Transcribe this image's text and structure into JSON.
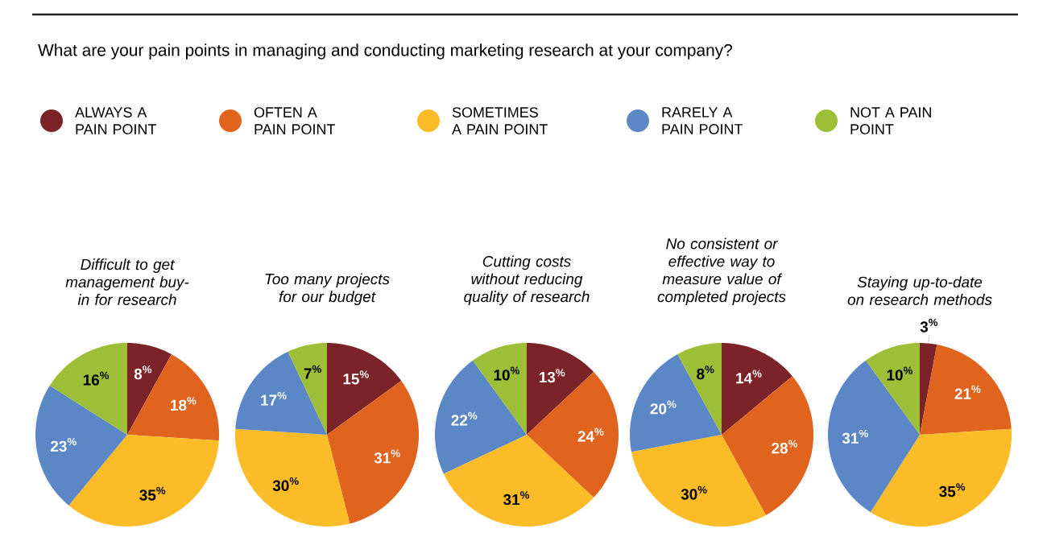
{
  "chart_data": [
    {
      "type": "other",
      "title": "What are your pain points in managing and conducting marketing research at your company?"
    },
    {
      "type": "pie",
      "title": "Difficult to get management buy-in for research",
      "categories": [
        "ALWAYS A PAIN POINT",
        "OFTEN A PAIN POINT",
        "SOMETIMES A PAIN POINT",
        "RARELY A PAIN POINT",
        "NOT A PAIN POINT"
      ],
      "values": [
        8,
        18,
        35,
        23,
        16
      ],
      "colors": [
        "#7b2328",
        "#e0641e",
        "#fbbc27",
        "#5b87c6",
        "#9dbe37"
      ],
      "value_labels": [
        "8$^{%}$",
        "18$^{%}$",
        "35$^{%}$",
        "23$^{%}$",
        "16$^{%}$"
      ],
      "legend": "top"
    },
    {
      "type": "pie",
      "title": "Too many projects for our budget",
      "categories": [
        null,
        null,
        null,
        null,
        null
      ],
      "values": [
        15,
        31,
        30,
        17,
        7
      ],
      "colors": [
        "#7b2328",
        "#e0641e",
        "#fbbc27",
        "#5b87c6",
        "#9dbe37"
      ],
      "value_labels": [
        "15$^{%}$",
        "31$^{%}$",
        "30$^{%}$",
        "17$^{%}$",
        "7$^{%}$"
      ]
    },
    {
      "type": "pie",
      "title": "Cutting costs without reducing quality of research",
      "categories": [
        null,
        null,
        null,
        null,
        null
      ],
      "values": [
        13,
        24,
        31,
        22,
        10
      ],
      "colors": [
        "#7b2328",
        "#e0641e",
        "#fbbc27",
        "#5b87c6",
        "#9dbe37"
      ],
      "value_labels": [
        "13$^{%}$",
        "24$^{%}$",
        "31$^{%}$",
        "22$^{%}$",
        "10$^{%}$"
      ]
    },
    {
      "type": "pie",
      "title": "No consistent or effective way to measure value of completed projects",
      "categories": [
        null,
        null,
        null,
        null,
        null
      ],
      "values": [
        14,
        28,
        30,
        20,
        8
      ],
      "colors": [
        "#7b2328",
        "#e0641e",
        "#fbbc27",
        "#5b87c6",
        "#9dbe37"
      ],
      "value_labels": [
        "14$^{%}$",
        "28$^{%}$",
        "30$^{%}$",
        "20$^{%}$",
        "8$^{%}$"
      ]
    },
    {
      "type": "pie",
      "title": "Staying up-to-date on research methods",
      "categories": [
        null,
        null,
        null,
        null,
        null
      ],
      "values": [
        3,
        21,
        35,
        31,
        10
      ],
      "colors": [
        "#7b2328",
        "#e0641e",
        "#fbbc27",
        "#5b87c6",
        "#9dbe37"
      ],
      "value_labels": [
        "3$^{%}$",
        "21$^{%}$",
        "35$^{%}$",
        "31$^{%}$",
        "10$^{%}$"
      ]
    }
  ]
}
